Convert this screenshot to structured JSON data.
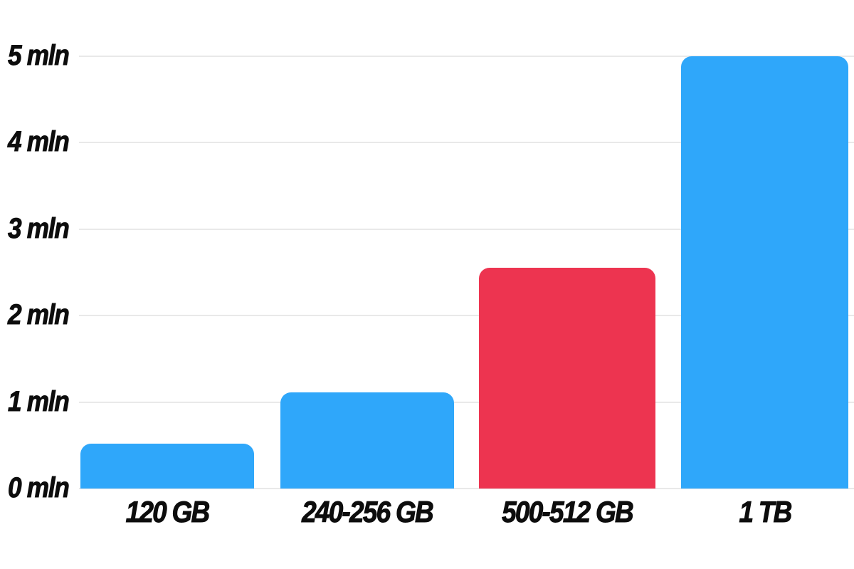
{
  "chart": {
    "background_color": "#ffffff",
    "grid_color": "#e9e9e9",
    "text_color": "#0d0d0d"
  },
  "chart_data": {
    "type": "bar",
    "title": "",
    "categories": [
      "120 GB",
      "240-256 GB",
      "500-512 GB",
      "1 TB"
    ],
    "values": [
      0.52,
      1.11,
      2.55,
      5.0
    ],
    "unit": "mln",
    "y_tick_labels": [
      "0 mln",
      "1 mln",
      "2 mln",
      "3 mln",
      "4 mln",
      "5 mln"
    ],
    "y_tick_values": [
      0,
      1,
      2,
      3,
      4,
      5
    ],
    "ylim": [
      0,
      5
    ],
    "grid": true,
    "legend": "none",
    "bar_colors": [
      "#2FA7FA",
      "#2FA7FA",
      "#ED3450",
      "#2FA7FA"
    ]
  }
}
